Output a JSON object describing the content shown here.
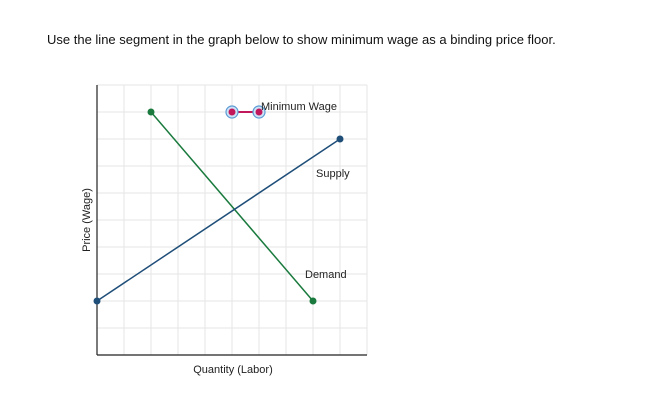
{
  "prompt": "Use the line segment in the graph below to show minimum wage as a binding price floor.",
  "graph": {
    "y_axis_label": "Price (Wage)",
    "x_axis_label": "Quantity (Labor)",
    "lines": [
      {
        "label": "Minimum Wage"
      },
      {
        "label": "Supply"
      },
      {
        "label": "Demand"
      }
    ]
  }
}
